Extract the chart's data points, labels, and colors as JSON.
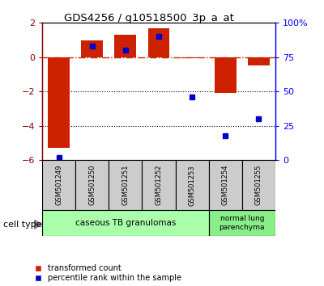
{
  "title": "GDS4256 / g10518500_3p_a_at",
  "samples": [
    "GSM501249",
    "GSM501250",
    "GSM501251",
    "GSM501252",
    "GSM501253",
    "GSM501254",
    "GSM501255"
  ],
  "transformed_count": [
    -5.3,
    1.0,
    1.3,
    1.7,
    -0.05,
    -2.1,
    -0.5
  ],
  "percentile_rank": [
    2,
    83,
    80,
    90,
    46,
    18,
    30
  ],
  "ylim_left": [
    -6,
    2
  ],
  "ylim_right": [
    0,
    100
  ],
  "yticks_left": [
    -6,
    -4,
    -2,
    0,
    2
  ],
  "yticks_right": [
    0,
    25,
    50,
    75,
    100
  ],
  "yticklabels_right": [
    "0",
    "25",
    "50",
    "75",
    "100%"
  ],
  "hline_y": 0,
  "dotted_lines": [
    -2,
    -4
  ],
  "bar_color": "#CC2200",
  "dot_color": "#0000CC",
  "group1_label": "caseous TB granulomas",
  "group2_label": "normal lung\nparenchyma",
  "group1_color": "#AAFFAA",
  "group2_color": "#88EE88",
  "sample_box_color": "#CCCCCC",
  "legend_red_label": "transformed count",
  "legend_blue_label": "percentile rank within the sample",
  "cell_type_label": "cell type",
  "bar_width": 0.65
}
